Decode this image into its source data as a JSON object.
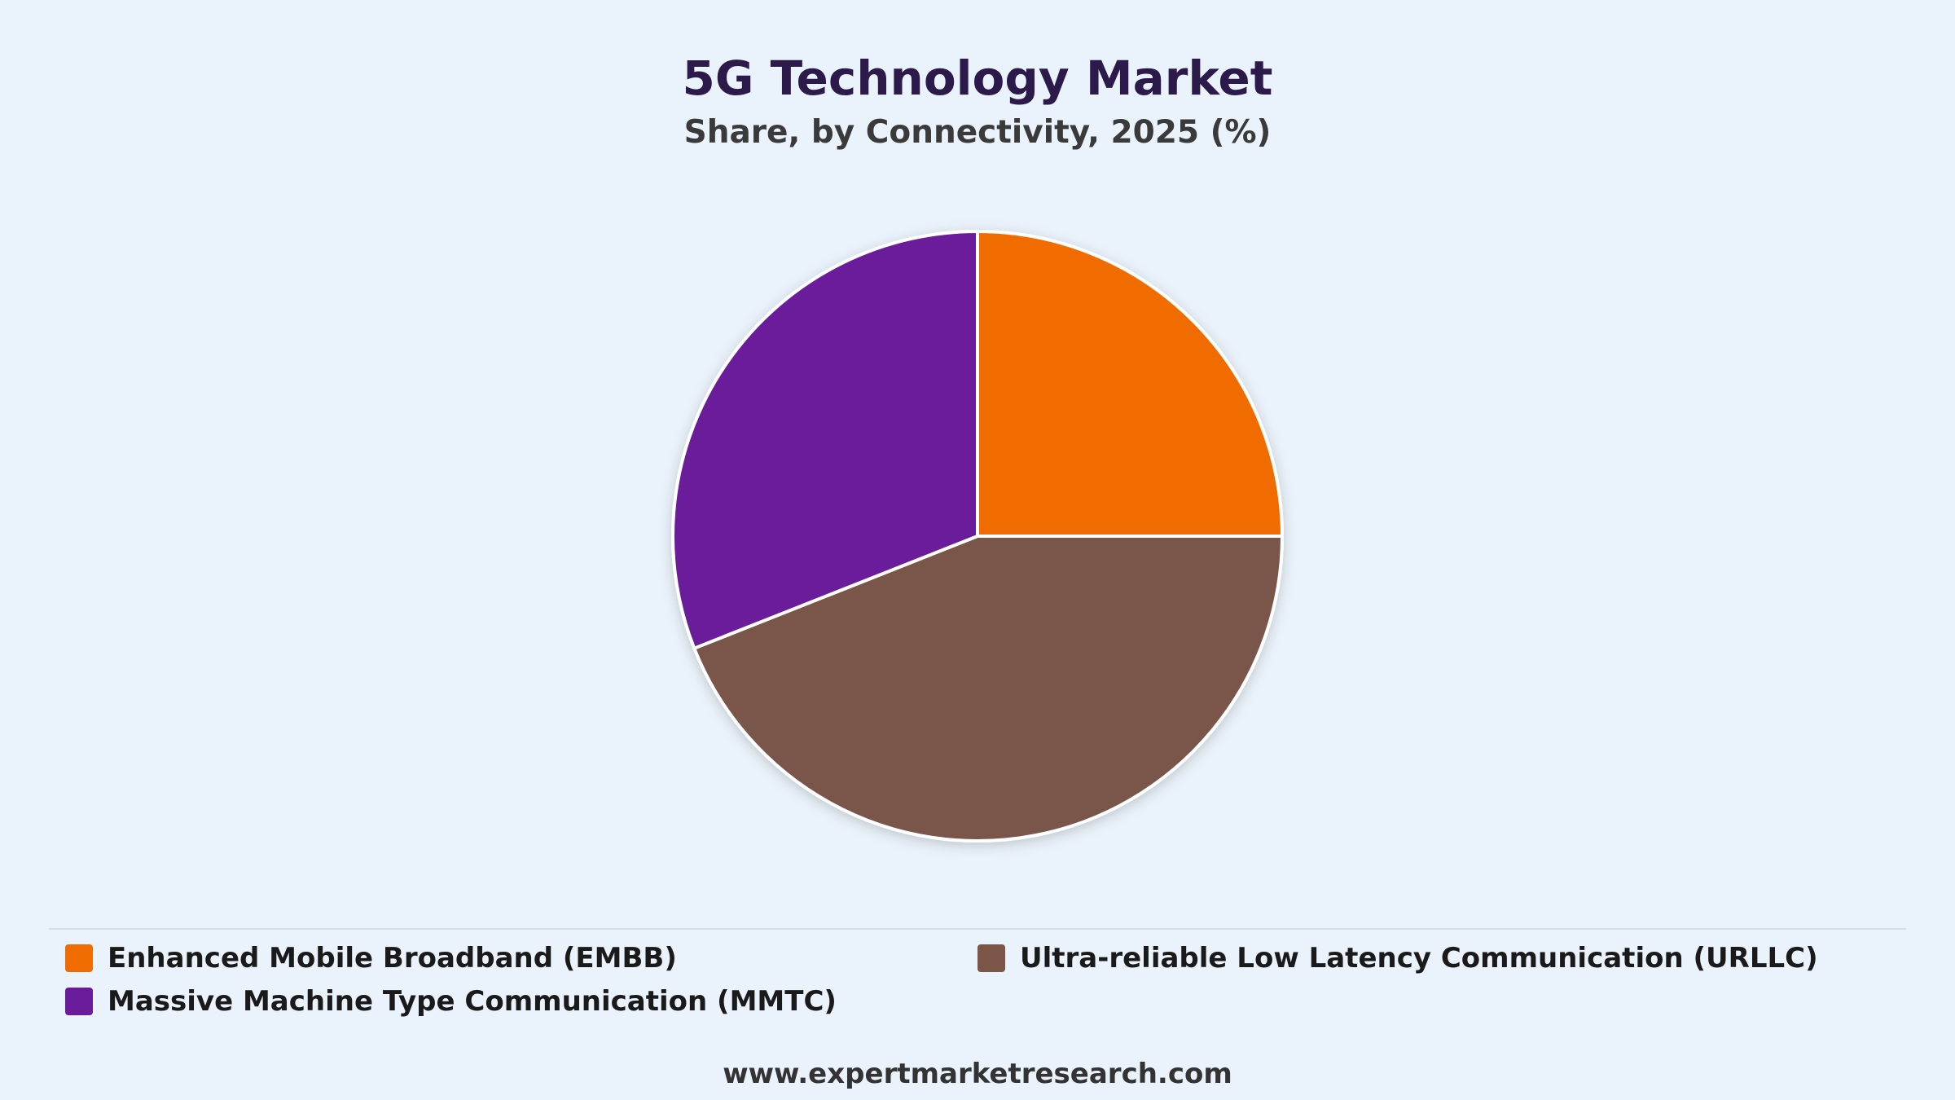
{
  "chart_data": {
    "type": "pie",
    "title": "5G Technology Market",
    "subtitle": "Share, by Connectivity, 2025 (%)",
    "categories": [
      "Enhanced Mobile Broadband (EMBB)",
      "Ultra-reliable Low Latency Communication (URLLC)",
      "Massive Machine Type Communication (MMTC)"
    ],
    "values": [
      25,
      44,
      31
    ],
    "colors": [
      "#f06c00",
      "#7a5548",
      "#6a1b9a"
    ],
    "legend_placement": "bottom"
  },
  "footer": {
    "source": "www.expertmarketresearch.com"
  }
}
